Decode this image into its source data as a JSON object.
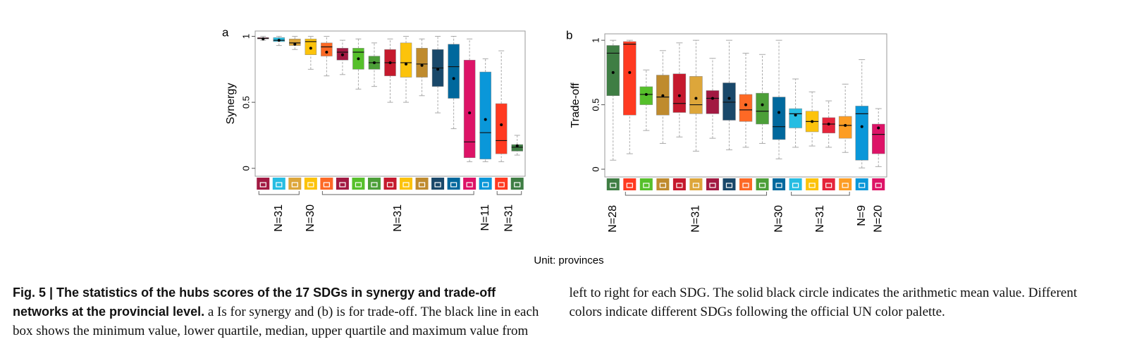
{
  "chart_data": [
    {
      "type": "box",
      "panel_label": "a",
      "ylabel": "Synergy",
      "ylim": [
        -0.06,
        1.04
      ],
      "yticks": [
        0,
        0.5,
        1
      ],
      "categories": [
        null,
        null,
        null,
        null,
        null,
        null,
        null,
        null,
        null,
        null,
        null,
        null,
        null,
        null,
        null,
        null,
        null
      ],
      "boxes": [
        {
          "color": "#A21942",
          "min": 0.97,
          "q1": 0.98,
          "median": 0.985,
          "q3": 0.99,
          "max": 1,
          "mean": 0.98
        },
        {
          "color": "#26BDE2",
          "min": 0.93,
          "q1": 0.96,
          "median": 0.97,
          "q3": 0.99,
          "max": 1,
          "mean": 0.97
        },
        {
          "color": "#DDA63A",
          "min": 0.9,
          "q1": 0.93,
          "median": 0.95,
          "q3": 0.98,
          "max": 1,
          "mean": 0.94
        },
        {
          "color": "#FCC30B",
          "min": 0.75,
          "q1": 0.86,
          "median": 0.96,
          "q3": 0.98,
          "max": 1,
          "mean": 0.91
        },
        {
          "color": "#FD6925",
          "min": 0.7,
          "q1": 0.85,
          "median": 0.92,
          "q3": 0.95,
          "max": 1,
          "mean": 0.88
        },
        {
          "color": "#A21942",
          "min": 0.71,
          "q1": 0.82,
          "median": 0.88,
          "q3": 0.91,
          "max": 0.97,
          "mean": 0.86
        },
        {
          "color": "#56C02B",
          "min": 0.6,
          "q1": 0.75,
          "median": 0.88,
          "q3": 0.91,
          "max": 0.98,
          "mean": 0.83
        },
        {
          "color": "#4C9F38",
          "min": 0.62,
          "q1": 0.75,
          "median": 0.8,
          "q3": 0.85,
          "max": 0.95,
          "mean": 0.8
        },
        {
          "color": "#C5192D",
          "min": 0.5,
          "q1": 0.7,
          "median": 0.8,
          "q3": 0.9,
          "max": 0.98,
          "mean": 0.8
        },
        {
          "color": "#FCC30B",
          "min": 0.5,
          "q1": 0.69,
          "median": 0.8,
          "q3": 0.95,
          "max": 1,
          "mean": 0.79
        },
        {
          "color": "#BF8B2E",
          "min": 0.55,
          "q1": 0.69,
          "median": 0.79,
          "q3": 0.91,
          "max": 0.98,
          "mean": 0.78
        },
        {
          "color": "#19486A",
          "min": 0.42,
          "q1": 0.62,
          "median": 0.76,
          "q3": 0.9,
          "max": 1,
          "mean": 0.75
        },
        {
          "color": "#00689D",
          "min": 0.3,
          "q1": 0.53,
          "median": 0.77,
          "q3": 0.94,
          "max": 1,
          "mean": 0.68
        },
        {
          "color": "#DD1367",
          "min": 0.05,
          "q1": 0.08,
          "median": 0.2,
          "q3": 0.82,
          "max": 0.98,
          "mean": 0.42
        },
        {
          "color": "#0A97D9",
          "min": 0.05,
          "q1": 0.07,
          "median": 0.27,
          "q3": 0.73,
          "max": 0.83,
          "mean": 0.37
        },
        {
          "color": "#FF3A21",
          "min": 0.05,
          "q1": 0.11,
          "median": 0.21,
          "q3": 0.49,
          "max": 0.89,
          "mean": 0.33
        },
        {
          "color": "#3F7E44",
          "min": 0.1,
          "q1": 0.13,
          "median": 0.16,
          "q3": 0.18,
          "max": 0.25,
          "mean": 0.17
        }
      ],
      "n_labels": [
        "N=31",
        "N=30",
        "N=31",
        "N=11",
        "N=31"
      ]
    },
    {
      "type": "box",
      "panel_label": "b",
      "ylabel": "Trade-off",
      "ylim": [
        -0.06,
        1.05
      ],
      "yticks": [
        0,
        0.5,
        1
      ],
      "categories": [
        null,
        null,
        null,
        null,
        null,
        null,
        null,
        null,
        null,
        null,
        null,
        null,
        null,
        null,
        null,
        null,
        null
      ],
      "boxes": [
        {
          "color": "#3F7E44",
          "min": 0.07,
          "q1": 0.57,
          "median": 0.9,
          "q3": 0.96,
          "max": 1,
          "mean": 0.75
        },
        {
          "color": "#FF3A21",
          "min": 0.12,
          "q1": 0.42,
          "median": 0.97,
          "q3": 0.99,
          "max": 1,
          "mean": 0.75
        },
        {
          "color": "#56C02B",
          "min": 0.3,
          "q1": 0.5,
          "median": 0.58,
          "q3": 0.64,
          "max": 0.77,
          "mean": 0.58
        },
        {
          "color": "#BF8B2E",
          "min": 0.2,
          "q1": 0.42,
          "median": 0.56,
          "q3": 0.73,
          "max": 0.92,
          "mean": 0.57
        },
        {
          "color": "#C5192D",
          "min": 0.25,
          "q1": 0.44,
          "median": 0.51,
          "q3": 0.74,
          "max": 0.98,
          "mean": 0.57
        },
        {
          "color": "#DDA63A",
          "min": 0.14,
          "q1": 0.43,
          "median": 0.5,
          "q3": 0.72,
          "max": 1,
          "mean": 0.55
        },
        {
          "color": "#A21942",
          "min": 0.24,
          "q1": 0.43,
          "median": 0.55,
          "q3": 0.61,
          "max": 0.86,
          "mean": 0.55
        },
        {
          "color": "#19486A",
          "min": 0.15,
          "q1": 0.38,
          "median": 0.52,
          "q3": 0.67,
          "max": 1,
          "mean": 0.55
        },
        {
          "color": "#FD6925",
          "min": 0.17,
          "q1": 0.37,
          "median": 0.46,
          "q3": 0.58,
          "max": 0.9,
          "mean": 0.5
        },
        {
          "color": "#4C9F38",
          "min": 0.2,
          "q1": 0.35,
          "median": 0.45,
          "q3": 0.59,
          "max": 0.89,
          "mean": 0.5
        },
        {
          "color": "#00689D",
          "min": 0.08,
          "q1": 0.23,
          "median": 0.33,
          "q3": 0.56,
          "max": 1,
          "mean": 0.44
        },
        {
          "color": "#26BDE2",
          "min": 0.17,
          "q1": 0.32,
          "median": 0.43,
          "q3": 0.47,
          "max": 0.7,
          "mean": 0.42
        },
        {
          "color": "#FCC30B",
          "min": 0.18,
          "q1": 0.29,
          "median": 0.37,
          "q3": 0.45,
          "max": 0.6,
          "mean": 0.37
        },
        {
          "color": "#E5243B",
          "min": 0.17,
          "q1": 0.28,
          "median": 0.35,
          "q3": 0.4,
          "max": 0.53,
          "mean": 0.35
        },
        {
          "color": "#FD9D24",
          "min": 0.13,
          "q1": 0.24,
          "median": 0.34,
          "q3": 0.41,
          "max": 0.66,
          "mean": 0.34
        },
        {
          "color": "#0A97D9",
          "min": 0.01,
          "q1": 0.07,
          "median": 0.43,
          "q3": 0.49,
          "max": 0.85,
          "mean": 0.33
        },
        {
          "color": "#DD1367",
          "min": 0.02,
          "q1": 0.12,
          "median": 0.27,
          "q3": 0.35,
          "max": 0.47,
          "mean": 0.32
        }
      ],
      "n_labels": [
        "N=28",
        "N=31",
        "N=30",
        "N=31",
        "N=9",
        "N=20"
      ]
    }
  ],
  "unit_note": "Unit: provinces",
  "caption": {
    "title": "Fig. 5 | The statistics of the hubs scores of the 17 SDGs in synergy and trade-off networks at the provincial level.",
    "body": "a Is for synergy and (b) is for trade-off. The black line in each box shows the minimum value, lower quartile, median, upper quartile and maximum value from left to right for each SDG. The solid black circle indicates the arithmetic mean value. Different colors indicate different SDGs following the official UN color palette."
  }
}
